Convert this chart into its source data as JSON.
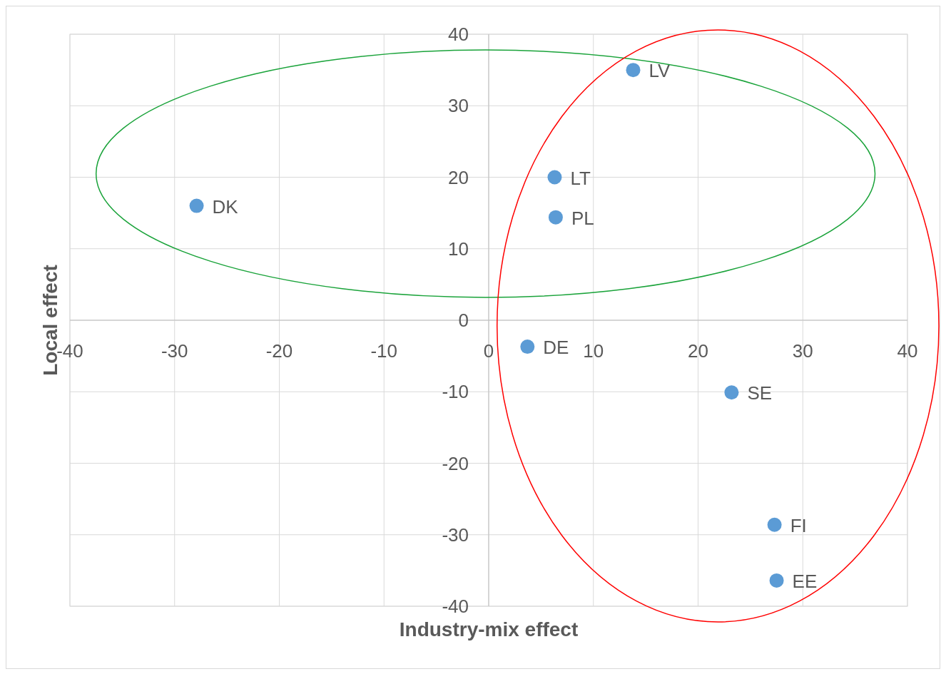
{
  "chart_data": {
    "type": "scatter",
    "xlabel": "Industry-mix effect",
    "ylabel": "Local effect",
    "series": [
      {
        "color": "#5b9bd5",
        "x": [
          13.8,
          6.3,
          6.4,
          -27.9,
          3.7,
          23.2,
          27.3,
          27.5
        ],
        "values": [
          35.0,
          20.0,
          14.4,
          16.0,
          -3.7,
          -10.1,
          -28.6,
          -36.4
        ]
      }
    ],
    "annotations": [
      {
        "text": "LV",
        "x": 13.8,
        "y": 35.0
      },
      {
        "text": "LT",
        "x": 6.3,
        "y": 20.0
      },
      {
        "text": "PL",
        "x": 6.4,
        "y": 14.4
      },
      {
        "text": "DK",
        "x": -27.9,
        "y": 16.0
      },
      {
        "text": "DE",
        "x": 3.7,
        "y": -3.7
      },
      {
        "text": "SE",
        "x": 23.2,
        "y": -10.1
      },
      {
        "text": "FI",
        "x": 27.3,
        "y": -28.6
      },
      {
        "text": "EE",
        "x": 27.5,
        "y": -36.4
      }
    ],
    "xlim": [
      -40,
      40
    ],
    "xticks": [
      -40,
      -30,
      -20,
      -10,
      0,
      10,
      20,
      30,
      40
    ],
    "ylim": [
      -40,
      40
    ],
    "yticks": [
      -40,
      -30,
      -20,
      -10,
      0,
      10,
      20,
      30,
      40
    ],
    "grid": true,
    "marker": "circle"
  }
}
